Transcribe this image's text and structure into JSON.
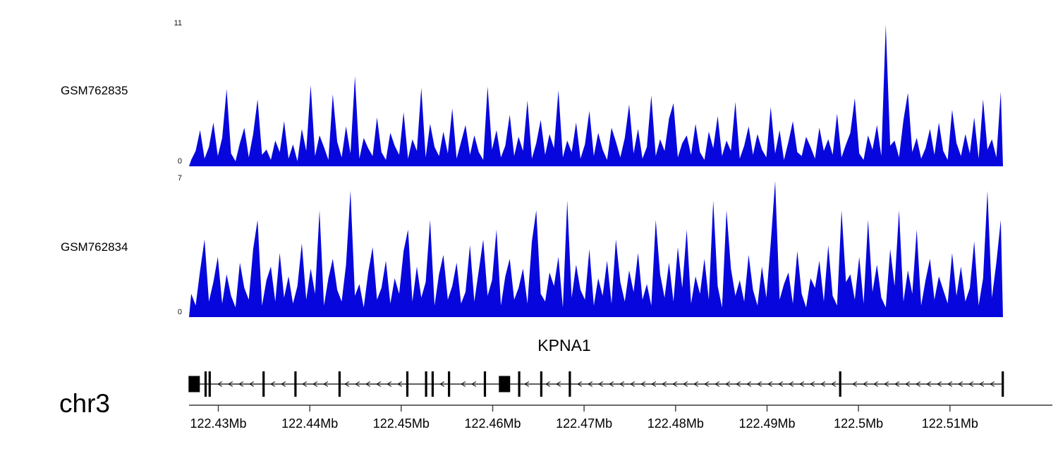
{
  "colors": {
    "signal": "#0707dd",
    "gene": "#000000",
    "axis_line": "#3a3a3a"
  },
  "chart_data": {
    "type": "area",
    "title": "",
    "legend_position": "left",
    "grid": false,
    "chromosome": "chr3",
    "tracks": [
      {
        "label": "GSM762835",
        "ymax": 11,
        "ymax_label": "11",
        "ymin_label": "0",
        "values": [
          0.5,
          1.2,
          2.8,
          0.6,
          1.5,
          3.4,
          0.8,
          2.2,
          6.0,
          1.0,
          0.4,
          1.8,
          3.0,
          0.7,
          2.5,
          5.2,
          0.9,
          1.3,
          0.5,
          2.0,
          1.1,
          3.5,
          0.6,
          1.7,
          0.4,
          2.9,
          1.2,
          6.3,
          0.8,
          2.4,
          1.5,
          0.5,
          5.6,
          1.9,
          0.7,
          3.1,
          1.0,
          7.0,
          0.6,
          2.2,
          1.4,
          0.8,
          3.8,
          1.1,
          0.5,
          2.6,
          1.6,
          0.9,
          4.2,
          0.6,
          2.1,
          1.2,
          6.1,
          0.7,
          3.3,
          1.5,
          0.8,
          2.7,
          1.0,
          4.5,
          0.6,
          1.9,
          3.2,
          0.9,
          2.4,
          1.1,
          0.5,
          6.2,
          1.3,
          2.8,
          0.7,
          1.6,
          4.0,
          0.8,
          2.3,
          1.2,
          5.1,
          0.6,
          1.8,
          3.6,
          0.9,
          2.5,
          1.4,
          5.9,
          0.7,
          2.0,
          1.1,
          3.4,
          0.6,
          1.7,
          4.3,
          0.8,
          2.6,
          1.3,
          0.5,
          3.0,
          1.9,
          0.7,
          2.2,
          4.8,
          1.0,
          2.9,
          0.6,
          1.5,
          5.5,
          0.8,
          2.1,
          1.2,
          3.7,
          4.9,
          0.7,
          1.8,
          2.4,
          0.9,
          3.3,
          1.1,
          0.5,
          2.7,
          1.4,
          3.9,
          0.8,
          2.0,
          1.2,
          5.0,
          0.6,
          1.6,
          3.1,
          0.9,
          2.5,
          1.3,
          0.7,
          4.6,
          1.0,
          2.8,
          0.5,
          1.9,
          3.5,
          1.1,
          0.8,
          2.3,
          1.5,
          0.6,
          3.0,
          1.2,
          2.1,
          0.9,
          4.1,
          0.7,
          1.7,
          2.6,
          5.3,
          1.0,
          0.5,
          2.4,
          1.3,
          3.2,
          0.8,
          11,
          1.6,
          2.0,
          0.7,
          3.6,
          5.7,
          1.1,
          2.2,
          0.6,
          1.4,
          2.9,
          0.9,
          3.4,
          1.2,
          0.5,
          4.4,
          1.8,
          0.8,
          2.5,
          1.0,
          3.8,
          0.6,
          5.2,
          1.3,
          2.1,
          0.7,
          5.8
        ]
      },
      {
        "label": "GSM762834",
        "ymax": 7,
        "ymax_label": "7",
        "ymin_label": "0",
        "values": [
          1.2,
          0.6,
          2.4,
          4.0,
          0.8,
          1.8,
          3.1,
          0.7,
          2.2,
          1.1,
          0.5,
          2.8,
          1.5,
          0.9,
          3.5,
          5.0,
          0.6,
          1.9,
          2.6,
          0.8,
          3.3,
          1.0,
          2.1,
          0.7,
          1.6,
          3.8,
          0.9,
          2.5,
          1.2,
          5.5,
          0.6,
          2.0,
          3.0,
          1.4,
          0.8,
          2.7,
          6.5,
          1.1,
          1.7,
          0.5,
          2.3,
          3.6,
          0.9,
          1.5,
          2.9,
          0.7,
          2.0,
          1.2,
          3.4,
          4.5,
          0.8,
          2.6,
          1.0,
          1.8,
          5.0,
          0.6,
          2.2,
          3.2,
          0.9,
          1.6,
          2.8,
          0.7,
          1.3,
          3.7,
          0.8,
          2.4,
          4.0,
          1.1,
          1.9,
          4.5,
          0.6,
          2.1,
          3.0,
          0.9,
          1.5,
          2.5,
          0.7,
          3.9,
          5.5,
          1.2,
          0.8,
          2.3,
          1.6,
          3.1,
          0.5,
          6.0,
          1.0,
          2.7,
          1.4,
          0.9,
          3.5,
          0.6,
          2.0,
          1.1,
          2.9,
          0.7,
          4.0,
          1.8,
          0.8,
          2.4,
          1.3,
          3.3,
          0.9,
          1.7,
          0.6,
          5.0,
          2.2,
          1.0,
          2.8,
          0.8,
          3.6,
          1.5,
          4.5,
          0.7,
          2.1,
          1.2,
          3.0,
          0.9,
          6.0,
          1.6,
          0.5,
          5.5,
          2.5,
          1.1,
          1.9,
          0.8,
          3.2,
          1.4,
          0.6,
          2.6,
          1.0,
          3.8,
          7.0,
          0.9,
          1.7,
          2.3,
          0.7,
          3.4,
          1.2,
          0.5,
          2.0,
          1.5,
          2.9,
          0.8,
          3.7,
          1.1,
          0.6,
          5.5,
          1.8,
          2.2,
          0.9,
          3.1,
          0.7,
          5.0,
          1.3,
          2.7,
          1.0,
          0.5,
          3.5,
          1.6,
          5.5,
          0.8,
          2.4,
          1.2,
          4.5,
          0.6,
          1.9,
          3.0,
          0.9,
          2.1,
          1.4,
          0.7,
          3.3,
          1.1,
          2.6,
          0.8,
          1.5,
          3.9,
          0.6,
          2.0,
          6.5,
          1.0,
          2.8,
          5.0
        ]
      }
    ],
    "gene_track": {
      "title": "KPNA1",
      "strand": "minus",
      "exons": [
        {
          "pos": 0.008,
          "type": "box"
        },
        {
          "pos": 0.022,
          "type": "tick"
        },
        {
          "pos": 0.027,
          "type": "tick"
        },
        {
          "pos": 0.093,
          "type": "tick"
        },
        {
          "pos": 0.132,
          "type": "tick"
        },
        {
          "pos": 0.186,
          "type": "tick"
        },
        {
          "pos": 0.269,
          "type": "tick"
        },
        {
          "pos": 0.292,
          "type": "tick"
        },
        {
          "pos": 0.3,
          "type": "tick"
        },
        {
          "pos": 0.32,
          "type": "tick"
        },
        {
          "pos": 0.364,
          "type": "tick"
        },
        {
          "pos": 0.388,
          "type": "box"
        },
        {
          "pos": 0.406,
          "type": "tick"
        },
        {
          "pos": 0.433,
          "type": "tick"
        },
        {
          "pos": 0.468,
          "type": "tick"
        },
        {
          "pos": 0.799,
          "type": "tick"
        },
        {
          "pos": 0.998,
          "type": "tick"
        }
      ]
    },
    "axis": {
      "start_mb": 122.4268,
      "end_mb": 122.5212,
      "ticks": [
        {
          "value": 122.43,
          "label": "122.43Mb"
        },
        {
          "value": 122.44,
          "label": "122.44Mb"
        },
        {
          "value": 122.45,
          "label": "122.45Mb"
        },
        {
          "value": 122.46,
          "label": "122.46Mb"
        },
        {
          "value": 122.47,
          "label": "122.47Mb"
        },
        {
          "value": 122.48,
          "label": "122.48Mb"
        },
        {
          "value": 122.49,
          "label": "122.49Mb"
        },
        {
          "value": 122.5,
          "label": "122.5Mb"
        },
        {
          "value": 122.51,
          "label": "122.51Mb"
        }
      ]
    }
  }
}
